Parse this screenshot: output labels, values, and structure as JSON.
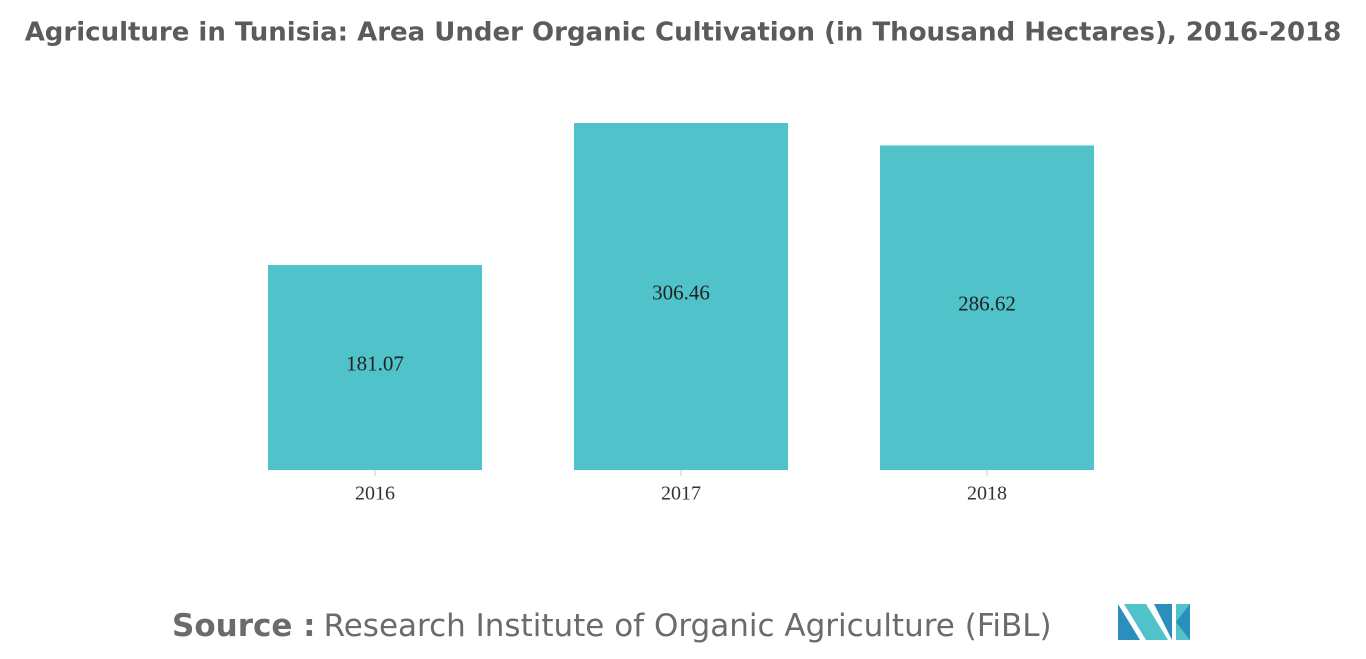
{
  "chart_data": {
    "type": "bar",
    "title": "Agriculture in Tunisia: Area Under Organic Cultivation (in Thousand Hectares), 2016-2018",
    "categories": [
      "2016",
      "2017",
      "2018"
    ],
    "values": [
      181.07,
      306.46,
      286.62
    ],
    "color": "#4fc3c9",
    "source_label": "Source :",
    "source": "Research Institute of Organic Agriculture (FiBL)"
  }
}
